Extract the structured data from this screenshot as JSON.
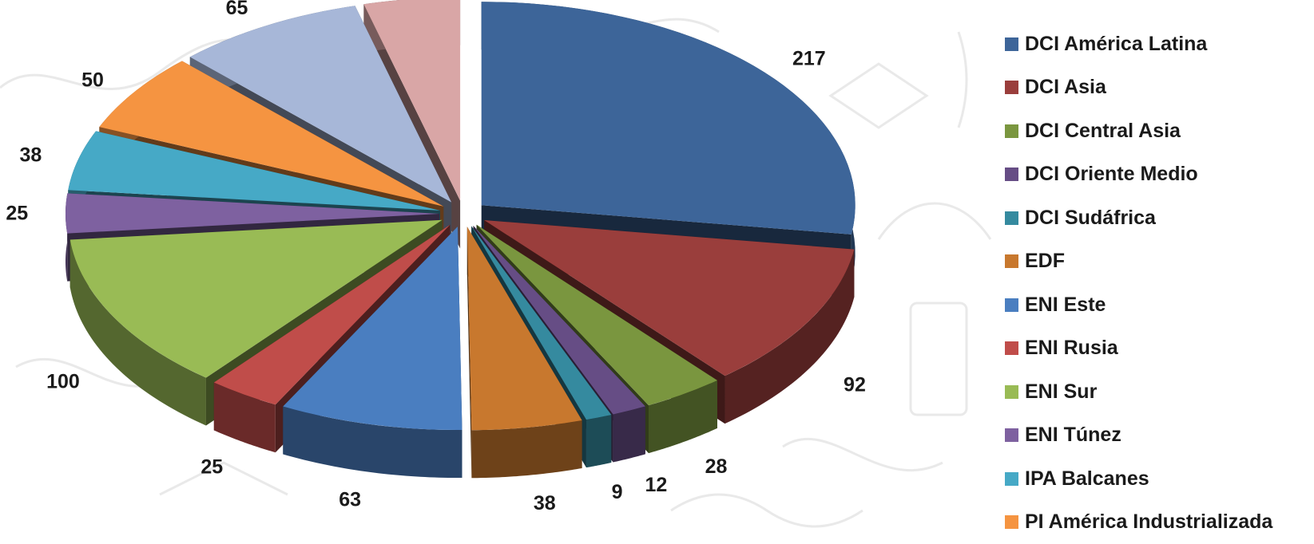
{
  "chart_data": {
    "type": "pie",
    "title": "",
    "legend_position": "right",
    "series": [
      {
        "name": "DCI América Latina",
        "value": 217,
        "color": "#3d6599"
      },
      {
        "name": "DCI Asia",
        "value": 92,
        "color": "#9a3e3c"
      },
      {
        "name": "DCI Central Asia",
        "value": 28,
        "color": "#7a963f"
      },
      {
        "name": "DCI Oriente Medio",
        "value": 12,
        "color": "#664d85"
      },
      {
        "name": "DCI Sudáfrica",
        "value": 9,
        "color": "#358a9f"
      },
      {
        "name": "EDF",
        "value": 38,
        "color": "#c8782e"
      },
      {
        "name": "ENI Este",
        "value": 63,
        "color": "#4a7ec0"
      },
      {
        "name": "ENI Rusia",
        "value": 25,
        "color": "#c04d4a"
      },
      {
        "name": "ENI Sur",
        "value": 100,
        "color": "#99bb55"
      },
      {
        "name": "ENI Túnez",
        "value": 25,
        "color": "#7e61a0"
      },
      {
        "name": "IPA Balcanes",
        "value": 38,
        "color": "#46a9c6"
      },
      {
        "name": "PI América Industrializada",
        "value": 50,
        "color": "#f59441"
      },
      {
        "name": "",
        "value": 65,
        "color": "#a7b7d8"
      },
      {
        "name": "",
        "value": 33,
        "color": "#d9a6a6"
      }
    ]
  }
}
